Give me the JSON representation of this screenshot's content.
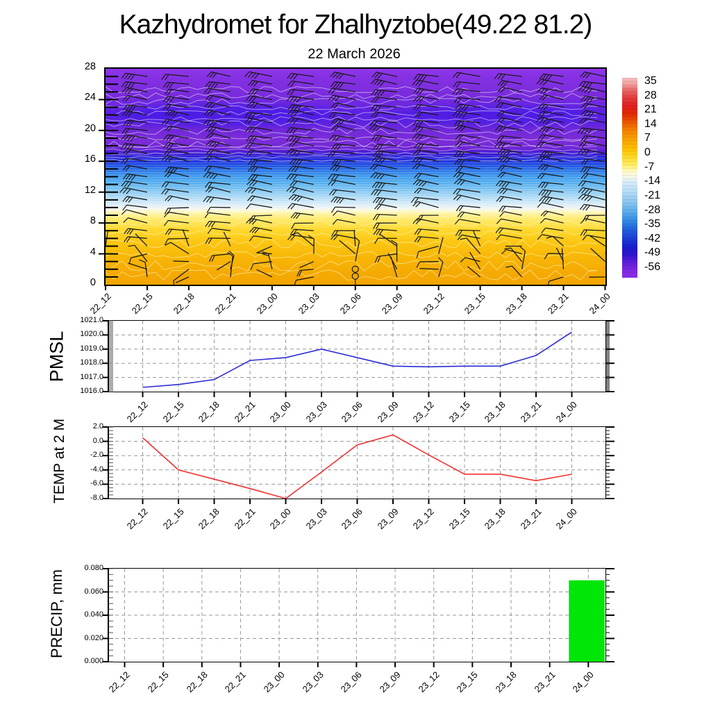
{
  "title": "Kazhydromet for Zhalhyztobe(49.22 81.2)",
  "subtitle": "22 March 2026",
  "time_labels": [
    "22_12",
    "22_15",
    "22_18",
    "22_21",
    "23_00",
    "23_03",
    "23_06",
    "23_09",
    "23_12",
    "23_15",
    "23_18",
    "23_21",
    "24_00"
  ],
  "colors": {
    "pmsl_line": "#2b2bd5",
    "temp_line": "#f23030",
    "precip_bar": "#00e606",
    "grid": "#979797",
    "axis": "#000000",
    "barb": "#1a1a1a",
    "contour_upper": "rgba(255,255,255,0.5)",
    "contour_lower": "rgba(255,243,180,0.55)",
    "panel_stops": [
      [
        0,
        "#8f35e9"
      ],
      [
        0.05,
        "#8330e2"
      ],
      [
        0.12,
        "#7a2cdc"
      ],
      [
        0.17,
        "#6b28e0"
      ],
      [
        0.2,
        "#5a21e2"
      ],
      [
        0.25,
        "#5e23e0"
      ],
      [
        0.28,
        "#6f28da"
      ],
      [
        0.33,
        "#7c2dd8"
      ],
      [
        0.37,
        "#6e27d4"
      ],
      [
        0.385,
        "#4b1dd4"
      ],
      [
        0.4,
        "#2d17d2"
      ],
      [
        0.425,
        "#1f2ede"
      ],
      [
        0.45,
        "#2055e2"
      ],
      [
        0.475,
        "#2f7ce8"
      ],
      [
        0.5,
        "#3f9cec"
      ],
      [
        0.53,
        "#57b0ee"
      ],
      [
        0.565,
        "#86c8f2"
      ],
      [
        0.6,
        "#b6def5"
      ],
      [
        0.63,
        "#ddeef9"
      ],
      [
        0.648,
        "#f2f6f0"
      ],
      [
        0.658,
        "#fdfad2"
      ],
      [
        0.672,
        "#fff3a0"
      ],
      [
        0.7,
        "#ffe965"
      ],
      [
        0.745,
        "#ffd930"
      ],
      [
        0.8,
        "#fcc714"
      ],
      [
        0.87,
        "#f8b707"
      ],
      [
        0.94,
        "#f5ab03"
      ],
      [
        1,
        "#f3a500"
      ]
    ],
    "colorbar_stops": [
      [
        0,
        "#f6bfc0"
      ],
      [
        0.03,
        "#f2a3a3"
      ],
      [
        0.06,
        "#ea6a6a"
      ],
      [
        0.1,
        "#e23c3c"
      ],
      [
        0.14,
        "#df1f1f"
      ],
      [
        0.18,
        "#e02800"
      ],
      [
        0.22,
        "#ea5500"
      ],
      [
        0.26,
        "#f47f00"
      ],
      [
        0.31,
        "#f9a300"
      ],
      [
        0.36,
        "#fdc301"
      ],
      [
        0.4,
        "#ffdb2d"
      ],
      [
        0.44,
        "#fff06e"
      ],
      [
        0.47,
        "#fffacc"
      ],
      [
        0.5,
        "#f4f6ee"
      ],
      [
        0.52,
        "#d9ecf9"
      ],
      [
        0.57,
        "#b4dcf5"
      ],
      [
        0.62,
        "#8cc7f0"
      ],
      [
        0.67,
        "#5bacea"
      ],
      [
        0.72,
        "#2f85e3"
      ],
      [
        0.76,
        "#215edd"
      ],
      [
        0.8,
        "#1c40d6"
      ],
      [
        0.84,
        "#181fd0"
      ],
      [
        0.88,
        "#2a14cc"
      ],
      [
        0.92,
        "#5b1dd8"
      ],
      [
        0.96,
        "#7c27e2"
      ],
      [
        1,
        "#8d2ee8"
      ]
    ]
  },
  "chart_data": [
    {
      "type": "heatmap",
      "name": "time-height temperature cross-section",
      "categories": [
        "22_12",
        "22_15",
        "22_18",
        "22_21",
        "23_00",
        "23_03",
        "23_06",
        "23_09",
        "23_12",
        "23_15",
        "23_18",
        "23_21",
        "24_00"
      ],
      "ylabel_ticks": [
        0,
        4,
        8,
        12,
        16,
        20,
        24,
        28
      ],
      "ylim": [
        0,
        28
      ],
      "colorbar_ticks": [
        35,
        28,
        21,
        14,
        7,
        0,
        -7,
        -14,
        -21,
        -28,
        -35,
        -42,
        -49,
        -56
      ],
      "overlays": [
        "wind-barbs",
        "white-contour-lines",
        "calm-circles at 23_06 low levels"
      ]
    },
    {
      "type": "line",
      "title": "PMSL",
      "categories": [
        "22_12",
        "22_15",
        "22_18",
        "22_21",
        "23_00",
        "23_03",
        "23_06",
        "23_09",
        "23_12",
        "23_15",
        "23_18",
        "23_21",
        "24_00"
      ],
      "values": [
        1016.3,
        1016.5,
        1016.85,
        1018.2,
        1018.4,
        1019.0,
        1018.4,
        1017.8,
        1017.75,
        1017.8,
        1017.8,
        1018.55,
        1020.2
      ],
      "ylim": [
        1016,
        1021
      ],
      "ytick_labels": [
        "1016.0",
        "1017.0",
        "1018.0",
        "1019.0",
        "1020.0",
        "1021.0"
      ],
      "grid": true,
      "legend": "none"
    },
    {
      "type": "line",
      "title": "TEMP at 2 M",
      "categories": [
        "22_12",
        "22_15",
        "22_18",
        "22_21",
        "23_00",
        "23_03",
        "23_06",
        "23_09",
        "23_12",
        "23_15",
        "23_18",
        "23_21",
        "24_00"
      ],
      "values": [
        0.5,
        -4.0,
        -5.3,
        -6.6,
        -8.0,
        -4.3,
        -0.5,
        0.9,
        -1.9,
        -4.6,
        -4.6,
        -5.5,
        -4.6
      ],
      "ylim": [
        -8,
        2
      ],
      "ytick_labels": [
        "-8.0",
        "-6.0",
        "-4.0",
        "-2.0",
        "0.0",
        "2.0"
      ],
      "grid": true,
      "legend": "none"
    },
    {
      "type": "bar",
      "title": "PRECIP, mm",
      "categories": [
        "22_12",
        "22_15",
        "22_18",
        "22_21",
        "23_00",
        "23_03",
        "23_06",
        "23_09",
        "23_12",
        "23_15",
        "23_18",
        "23_21",
        "24_00"
      ],
      "values": [
        0,
        0,
        0,
        0,
        0,
        0,
        0,
        0,
        0,
        0,
        0,
        0,
        0.07
      ],
      "ylim": [
        0,
        0.08
      ],
      "ytick_labels": [
        "0.000",
        "0.020",
        "0.040",
        "0.060",
        "0.080"
      ],
      "grid": true,
      "legend": "none"
    }
  ]
}
